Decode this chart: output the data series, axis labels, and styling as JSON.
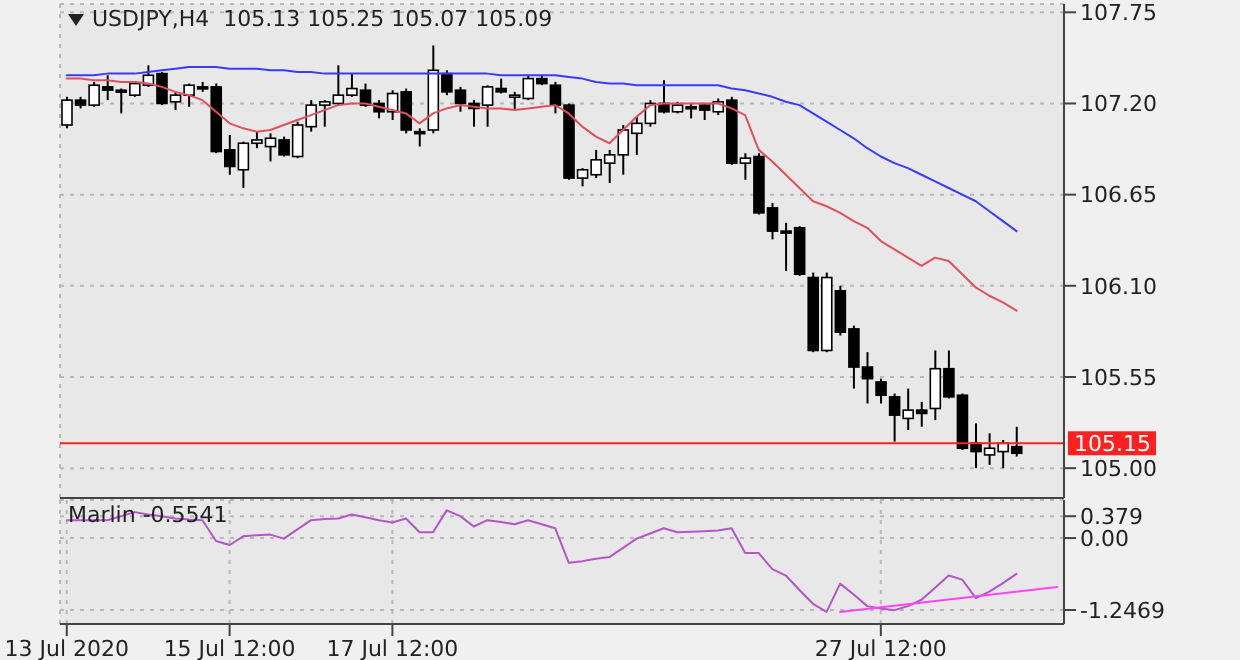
{
  "chart_data": [
    {
      "type": "candlestick",
      "title": "USDJPY,H4  105.13 105.25 105.07 105.09",
      "ohlc": [
        [
          107.07,
          107.24,
          107.05,
          107.22
        ],
        [
          107.22,
          107.24,
          107.17,
          107.19
        ],
        [
          107.19,
          107.33,
          107.18,
          107.31
        ],
        [
          107.3,
          107.37,
          107.22,
          107.28
        ],
        [
          107.28,
          107.29,
          107.14,
          107.27
        ],
        [
          107.25,
          107.33,
          107.24,
          107.32
        ],
        [
          107.31,
          107.43,
          107.3,
          107.37
        ],
        [
          107.38,
          107.39,
          107.19,
          107.2
        ],
        [
          107.21,
          107.27,
          107.16,
          107.25
        ],
        [
          107.25,
          107.32,
          107.18,
          107.31
        ],
        [
          107.3,
          107.33,
          107.27,
          107.29
        ],
        [
          107.3,
          107.32,
          106.9,
          106.91
        ],
        [
          106.92,
          107.01,
          106.77,
          106.82
        ],
        [
          106.8,
          106.97,
          106.69,
          106.96
        ],
        [
          106.96,
          107.03,
          106.93,
          106.98
        ],
        [
          106.94,
          107.02,
          106.85,
          106.99
        ],
        [
          106.98,
          107.0,
          106.88,
          106.89
        ],
        [
          106.88,
          107.09,
          106.87,
          107.07
        ],
        [
          107.06,
          107.22,
          107.03,
          107.19
        ],
        [
          107.19,
          107.22,
          107.06,
          107.21
        ],
        [
          107.2,
          107.43,
          107.19,
          107.25
        ],
        [
          107.25,
          107.38,
          107.24,
          107.29
        ],
        [
          107.28,
          107.32,
          107.18,
          107.19
        ],
        [
          107.2,
          107.22,
          107.11,
          107.15
        ],
        [
          107.15,
          107.28,
          107.1,
          107.26
        ],
        [
          107.27,
          107.29,
          107.02,
          107.04
        ],
        [
          107.03,
          107.05,
          106.94,
          107.02
        ],
        [
          107.04,
          107.55,
          107.02,
          107.4
        ],
        [
          107.38,
          107.4,
          107.25,
          107.27
        ],
        [
          107.28,
          107.3,
          107.15,
          107.2
        ],
        [
          107.2,
          107.22,
          107.06,
          107.17
        ],
        [
          107.19,
          107.31,
          107.06,
          107.3
        ],
        [
          107.29,
          107.35,
          107.26,
          107.27
        ],
        [
          107.24,
          107.27,
          107.16,
          107.25
        ],
        [
          107.23,
          107.37,
          107.22,
          107.35
        ],
        [
          107.35,
          107.37,
          107.31,
          107.32
        ],
        [
          107.31,
          107.33,
          107.14,
          107.19
        ],
        [
          107.19,
          107.2,
          106.74,
          106.75
        ],
        [
          106.75,
          106.81,
          106.7,
          106.8
        ],
        [
          106.77,
          106.92,
          106.75,
          106.86
        ],
        [
          106.84,
          106.92,
          106.72,
          106.89
        ],
        [
          106.89,
          107.07,
          106.77,
          107.04
        ],
        [
          107.02,
          107.12,
          106.89,
          107.08
        ],
        [
          107.08,
          107.22,
          107.06,
          107.2
        ],
        [
          107.2,
          107.34,
          107.14,
          107.15
        ],
        [
          107.15,
          107.21,
          107.14,
          107.19
        ],
        [
          107.18,
          107.2,
          107.11,
          107.17
        ],
        [
          107.19,
          107.2,
          107.1,
          107.16
        ],
        [
          107.15,
          107.23,
          107.13,
          107.21
        ],
        [
          107.22,
          107.24,
          106.83,
          106.84
        ],
        [
          106.84,
          106.9,
          106.74,
          106.87
        ],
        [
          106.88,
          106.9,
          106.53,
          106.54
        ],
        [
          106.57,
          106.6,
          106.38,
          106.43
        ],
        [
          106.43,
          106.48,
          106.19,
          106.42
        ],
        [
          106.45,
          106.46,
          106.16,
          106.17
        ],
        [
          106.15,
          106.18,
          105.7,
          105.71
        ],
        [
          105.71,
          106.18,
          105.7,
          106.15
        ],
        [
          106.07,
          106.1,
          105.8,
          105.82
        ],
        [
          105.84,
          105.86,
          105.48,
          105.61
        ],
        [
          105.61,
          105.7,
          105.39,
          105.54
        ],
        [
          105.52,
          105.54,
          105.39,
          105.44
        ],
        [
          105.43,
          105.45,
          105.16,
          105.32
        ],
        [
          105.3,
          105.48,
          105.23,
          105.35
        ],
        [
          105.35,
          105.4,
          105.25,
          105.33
        ],
        [
          105.36,
          105.71,
          105.29,
          105.6
        ],
        [
          105.6,
          105.71,
          105.42,
          105.43
        ],
        [
          105.44,
          105.45,
          105.11,
          105.12
        ],
        [
          105.15,
          105.27,
          105.0,
          105.1
        ],
        [
          105.08,
          105.21,
          105.02,
          105.12
        ],
        [
          105.1,
          105.17,
          105.0,
          105.15
        ],
        [
          105.13,
          105.25,
          105.07,
          105.09
        ],
        null,
        null,
        null
      ],
      "series": [
        {
          "type": "line",
          "color": "#e0505a",
          "values": [
            107.35,
            107.35,
            107.34,
            107.34,
            107.33,
            107.33,
            107.32,
            107.3,
            107.27,
            107.25,
            107.22,
            107.15,
            107.08,
            107.05,
            107.03,
            107.04,
            107.07,
            107.1,
            107.13,
            107.16,
            107.19,
            107.2,
            107.2,
            107.18,
            107.16,
            107.14,
            107.08,
            107.14,
            107.17,
            107.19,
            107.18,
            107.17,
            107.17,
            107.16,
            107.17,
            107.18,
            107.19,
            107.14,
            107.06,
            107.0,
            106.96,
            107.04,
            107.12,
            107.19,
            107.2,
            107.2,
            107.2,
            107.2,
            107.2,
            107.17,
            107.13,
            106.92,
            106.85,
            106.77,
            106.69,
            106.61,
            106.58,
            106.54,
            106.49,
            106.45,
            106.37,
            106.32,
            106.27,
            106.22,
            106.27,
            106.25,
            106.17,
            106.09,
            106.04,
            106.0,
            105.95,
            null,
            null,
            null
          ]
        },
        {
          "type": "line",
          "color": "#3a3aff",
          "values": [
            107.37,
            107.37,
            107.37,
            107.38,
            107.38,
            107.38,
            107.39,
            107.4,
            107.41,
            107.42,
            107.42,
            107.42,
            107.41,
            107.41,
            107.41,
            107.4,
            107.4,
            107.39,
            107.39,
            107.38,
            107.38,
            107.38,
            107.38,
            107.38,
            107.38,
            107.38,
            107.38,
            107.38,
            107.38,
            107.38,
            107.38,
            107.38,
            107.37,
            107.37,
            107.37,
            107.37,
            107.37,
            107.36,
            107.35,
            107.33,
            107.32,
            107.32,
            107.31,
            107.31,
            107.31,
            107.31,
            107.31,
            107.31,
            107.31,
            107.29,
            107.28,
            107.26,
            107.24,
            107.21,
            107.19,
            107.14,
            107.09,
            107.04,
            106.99,
            106.93,
            106.88,
            106.84,
            106.81,
            106.77,
            106.73,
            106.69,
            106.65,
            106.61,
            106.55,
            106.49,
            106.43,
            null,
            null,
            null
          ]
        }
      ],
      "ylim": [
        104.82,
        107.8
      ],
      "yticks": [
        {
          "value": 105,
          "label": "105.00"
        },
        105.55,
        {
          "value": 106.1,
          "label": "106.10"
        },
        106.65,
        {
          "value": 107.2,
          "label": "107.20"
        },
        107.75
      ],
      "ref_lines": [
        {
          "axis": "y",
          "value": 105.15,
          "label": "105.15",
          "color": "#ff2020"
        }
      ],
      "grid": true,
      "tick_labels": "y"
    },
    {
      "type": "line",
      "title": "Marlin -0.5541",
      "categories": [
        "13 Jul 2020",
        null,
        null,
        null,
        null,
        null,
        null,
        null,
        null,
        null,
        null,
        null,
        "15 Jul 12:00",
        null,
        null,
        null,
        null,
        null,
        null,
        null,
        null,
        null,
        null,
        null,
        "17 Jul 12:00",
        null,
        null,
        null,
        null,
        null,
        null,
        null,
        null,
        null,
        null,
        null,
        null,
        null,
        null,
        null,
        null,
        null,
        null,
        null,
        null,
        null,
        null,
        null,
        null,
        null,
        null,
        null,
        null,
        null,
        null,
        null,
        null,
        null,
        null,
        null,
        "27 Jul 12:00",
        null,
        null,
        null,
        null,
        null,
        null,
        null,
        null,
        null,
        null,
        null,
        null,
        null
      ],
      "series": [
        {
          "color": "#b455c8",
          "values": [
            0.31,
            0.31,
            0.31,
            0.31,
            0.38,
            0.45,
            0.41,
            0.38,
            0.34,
            0.32,
            0.31,
            -0.05,
            -0.12,
            0.03,
            0.05,
            0.06,
            -0.01,
            0.15,
            0.31,
            0.33,
            0.34,
            0.41,
            0.36,
            0.31,
            0.27,
            0.34,
            0.1,
            0.1,
            0.48,
            0.38,
            0.2,
            0.31,
            0.28,
            0.24,
            0.31,
            0.24,
            0.17,
            -0.43,
            -0.4,
            -0.36,
            -0.33,
            -0.17,
            -0.01,
            0.08,
            0.17,
            0.1,
            0.11,
            0.12,
            0.13,
            0.17,
            -0.26,
            -0.26,
            -0.54,
            -0.65,
            -0.9,
            -1.14,
            -1.28,
            -0.79,
            -0.98,
            -1.18,
            -1.22,
            -1.25,
            -1.18,
            -1.07,
            -0.86,
            -0.65,
            -0.72,
            -1.04,
            -0.93,
            -0.78,
            -0.62,
            null,
            null,
            null
          ]
        },
        {
          "color": "#ff44ff",
          "values": [
            null,
            null,
            null,
            null,
            null,
            null,
            null,
            null,
            null,
            null,
            null,
            null,
            null,
            null,
            null,
            null,
            null,
            null,
            null,
            null,
            null,
            null,
            null,
            null,
            null,
            null,
            null,
            null,
            null,
            null,
            null,
            null,
            null,
            null,
            null,
            null,
            null,
            null,
            null,
            null,
            null,
            null,
            null,
            null,
            null,
            null,
            null,
            null,
            null,
            null,
            null,
            null,
            null,
            null,
            null,
            null,
            null,
            -1.28,
            null,
            null,
            null,
            null,
            null,
            null,
            null,
            null,
            null,
            null,
            null,
            null,
            null,
            null,
            null,
            -0.85
          ]
        }
      ],
      "ylim": [
        -1.49,
        0.66
      ],
      "yticks": [
        -1.2469,
        {
          "value": 0,
          "label": "0.00"
        },
        0.379
      ],
      "grid": true
    }
  ]
}
